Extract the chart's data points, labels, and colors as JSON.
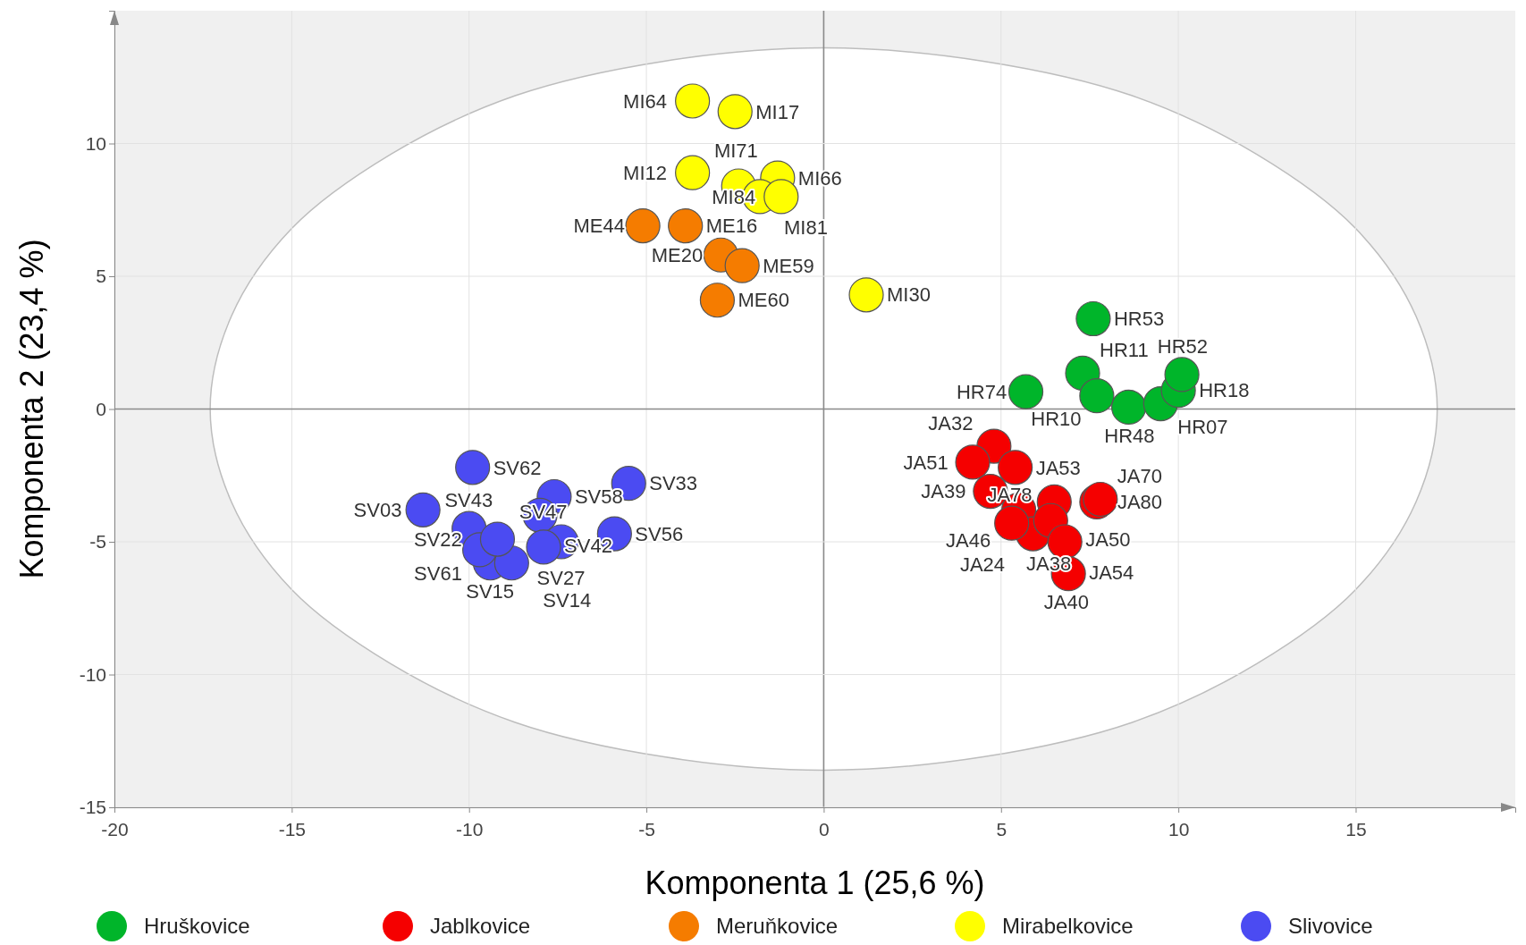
{
  "chart_data": {
    "type": "scatter",
    "xlabel": "Komponenta 1 (25,6 %)",
    "ylabel": "Komponenta 2 (23,4 %)",
    "xlim": [
      -20,
      19.5
    ],
    "ylim": [
      -15,
      15
    ],
    "xticks": [
      -20,
      -15,
      -10,
      -5,
      0,
      5,
      10,
      15
    ],
    "yticks": [
      -15,
      -10,
      -5,
      0,
      5,
      10
    ],
    "grid": true,
    "legend": "bottom",
    "series": [
      {
        "type": "area",
        "color": "#bdbdbd",
        "x": [
          17.3,
          16.7,
          15.0,
          12.2,
          8.7,
          4.5,
          0,
          -4.5,
          -8.7,
          -12.2,
          -15.0,
          -16.7,
          -17.3,
          -16.7,
          -15.0,
          -12.2,
          -8.7,
          -4.5,
          0,
          4.5,
          8.7,
          12.2,
          15.0,
          16.7,
          17.3
        ],
        "values": [
          0,
          3.5,
          6.8,
          9.6,
          11.8,
          13.1,
          13.6,
          13.1,
          11.8,
          9.6,
          6.8,
          3.5,
          0,
          -3.5,
          -6.8,
          -9.6,
          -11.8,
          -13.1,
          -13.6,
          -13.1,
          -11.8,
          -9.6,
          -6.8,
          -3.5,
          0
        ]
      },
      {
        "name": "Hruškovice",
        "color": "#00b52a",
        "marker": "circle",
        "x": [
          7.6,
          7.3,
          7.7,
          5.7,
          8.6,
          9.5,
          10.0,
          10.1
        ],
        "values": [
          3.4,
          1.35,
          0.5,
          0.65,
          0.07,
          0.2,
          0.7,
          1.3
        ],
        "value_labels": [
          "HR53",
          "HR11",
          "HR10",
          "HR74",
          "HR48",
          "HR07",
          "HR18",
          "HR52"
        ]
      },
      {
        "name": "Jablkovice",
        "color": "#f50000",
        "marker": "circle",
        "x": [
          4.8,
          5.4,
          4.2,
          4.7,
          5.5,
          6.5,
          7.7,
          7.8,
          5.9,
          5.3,
          6.4,
          6.8,
          6.9
        ],
        "values": [
          -1.4,
          -2.2,
          -2.0,
          -3.1,
          -3.8,
          -3.5,
          -3.5,
          -3.4,
          -4.7,
          -4.3,
          -4.2,
          -5.0,
          -6.2
        ],
        "value_labels": [
          "JA32",
          "JA53",
          "JA51",
          "JA39",
          "JA46",
          "JA50",
          "JA80",
          "JA70",
          "JA24",
          "JA78",
          "JA38",
          "JA54",
          "JA40"
        ]
      },
      {
        "name": "Meruňkovice",
        "color": "#f57c00",
        "marker": "circle",
        "x": [
          -5.1,
          -3.9,
          -2.9,
          -2.3,
          -3.0
        ],
        "values": [
          6.9,
          6.9,
          5.8,
          5.4,
          4.1
        ],
        "value_labels": [
          "ME44",
          "ME16",
          "ME20",
          "ME59",
          "ME60"
        ]
      },
      {
        "name": "Mirabelkovice",
        "color": "#ffff00",
        "marker": "circle",
        "x": [
          -3.7,
          -2.5,
          -3.7,
          -1.3,
          -2.4,
          -1.8,
          -1.2,
          1.2
        ],
        "values": [
          11.6,
          11.2,
          8.9,
          8.7,
          8.4,
          8.0,
          8.0,
          4.3
        ],
        "value_labels": [
          "MI64",
          "MI17",
          "MI12",
          "MI66",
          "MI71",
          "MI81",
          "MI84",
          "MI30"
        ]
      },
      {
        "name": "Slivovice",
        "color": "#4b4bf2",
        "marker": "circle",
        "x": [
          -9.9,
          -11.3,
          -10.0,
          -7.6,
          -8.0,
          -5.5,
          -5.9,
          -7.4,
          -7.9,
          -9.4,
          -8.8,
          -9.7,
          -9.2
        ],
        "values": [
          -2.2,
          -3.8,
          -4.5,
          -3.3,
          -4.0,
          -2.8,
          -4.7,
          -5.0,
          -5.2,
          -5.8,
          -5.8,
          -5.3,
          -4.9
        ],
        "value_labels": [
          "SV62",
          "SV03",
          "SV43",
          "SV58",
          "SV42",
          "SV33",
          "SV56",
          "SV27",
          "SV47",
          "SV15",
          "SV14",
          "SV61",
          "SV22"
        ]
      }
    ]
  }
}
